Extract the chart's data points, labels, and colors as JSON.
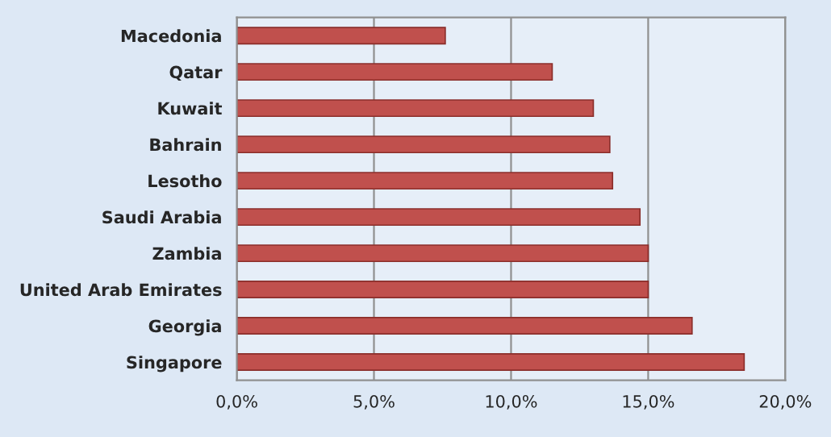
{
  "chart_data": {
    "type": "bar",
    "orientation": "horizontal",
    "categories": [
      "Macedonia",
      "Qatar",
      "Kuwait",
      "Bahrain",
      "Lesotho",
      "Saudi Arabia",
      "Zambia",
      "United Arab Emirates",
      "Georgia",
      "Singapore"
    ],
    "values": [
      7.6,
      11.5,
      13.0,
      13.6,
      13.7,
      14.7,
      15.0,
      15.0,
      16.6,
      18.5
    ],
    "color": "#c0504d",
    "xlim": [
      0,
      20
    ],
    "xticks": [
      {
        "value": 0,
        "label": "0,0%"
      },
      {
        "value": 5,
        "label": "5,0%"
      },
      {
        "value": 10,
        "label": "10,0%"
      },
      {
        "value": 15,
        "label": "15,0%"
      },
      {
        "value": 20,
        "label": "20,0%"
      }
    ],
    "grid": "x",
    "legend": false
  }
}
